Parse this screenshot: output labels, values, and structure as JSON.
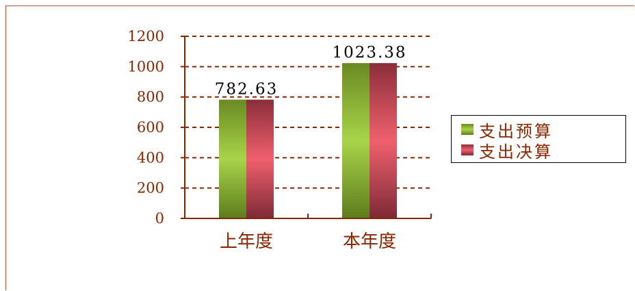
{
  "chart_data": {
    "type": "bar",
    "categories": [
      "上年度",
      "本年度"
    ],
    "series": [
      {
        "name": "支出预算",
        "values": [
          782.63,
          1023.38
        ],
        "color": "#7a9a2a"
      },
      {
        "name": "支出决算",
        "values": [
          782.63,
          1023.38
        ],
        "color": "#b83a4c"
      }
    ],
    "data_labels": [
      "782.63",
      "1023.38"
    ],
    "ylim": [
      0,
      1200
    ],
    "yticks": [
      "0",
      "200",
      "400",
      "600",
      "800",
      "1000",
      "1200"
    ],
    "grid": true,
    "legend": "right"
  }
}
